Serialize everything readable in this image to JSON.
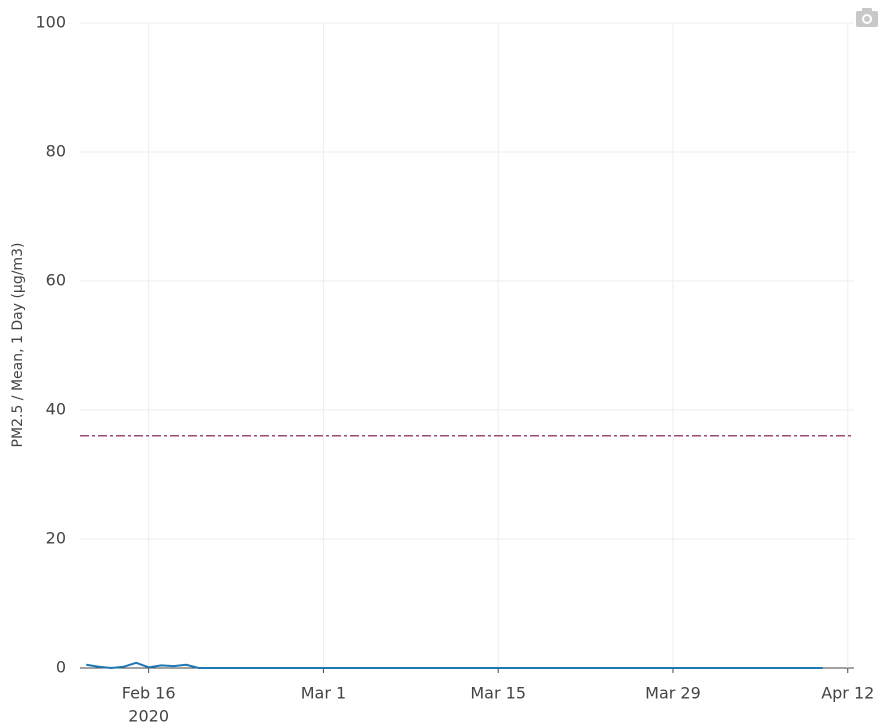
{
  "chart_data": {
    "type": "line",
    "y_axis_label": "PM2.5 / Mean, 1 Day (µg/m3)",
    "x": [
      "2020-02-11",
      "2020-02-12",
      "2020-02-13",
      "2020-02-14",
      "2020-02-15",
      "2020-02-16",
      "2020-02-17",
      "2020-02-18",
      "2020-02-19",
      "2020-02-20",
      "2020-02-21",
      "2020-02-22",
      "2020-02-23",
      "2020-02-24",
      "2020-02-25",
      "2020-02-26",
      "2020-02-27",
      "2020-02-28",
      "2020-02-29",
      "2020-03-01",
      "2020-03-02",
      "2020-03-03",
      "2020-03-04",
      "2020-03-05",
      "2020-03-06",
      "2020-03-07",
      "2020-03-08",
      "2020-03-09",
      "2020-03-10",
      "2020-03-11",
      "2020-03-12",
      "2020-03-13",
      "2020-03-14",
      "2020-03-15",
      "2020-03-16",
      "2020-03-17",
      "2020-03-18",
      "2020-03-19",
      "2020-03-20",
      "2020-03-21",
      "2020-03-22",
      "2020-03-23",
      "2020-03-24",
      "2020-03-25",
      "2020-03-26",
      "2020-03-27",
      "2020-03-28",
      "2020-03-29",
      "2020-03-30",
      "2020-03-31",
      "2020-04-01",
      "2020-04-02",
      "2020-04-03",
      "2020-04-04",
      "2020-04-05",
      "2020-04-06",
      "2020-04-07",
      "2020-04-08",
      "2020-04-09",
      "2020-04-10"
    ],
    "series": [
      {
        "color": "#1f77b4",
        "values": [
          0.5,
          0.2,
          0,
          0.2,
          0.8,
          0.1,
          0.4,
          0.3,
          0.5,
          0,
          0,
          0,
          0,
          0,
          0,
          0,
          0,
          0,
          0,
          0,
          0,
          0,
          0,
          0,
          0,
          0,
          0,
          0,
          0,
          0,
          0,
          0,
          0,
          0,
          0,
          0,
          0,
          0,
          0,
          0,
          0,
          0,
          0,
          0,
          0,
          0,
          0,
          0,
          0,
          0,
          0,
          0,
          0,
          0,
          0,
          0,
          0,
          0,
          0,
          0
        ]
      }
    ],
    "reference_lines": [
      {
        "value": 36,
        "color": "#9b4a72",
        "dash": "dash-dot"
      }
    ],
    "xlim": [
      "2020-02-10T12:00:00Z",
      "2020-04-12T12:00:00Z"
    ],
    "xticks": [
      {
        "value": "2020-02-16",
        "label": "Feb 16"
      },
      {
        "value": "2020-03-01",
        "label": "Mar 1"
      },
      {
        "value": "2020-03-15",
        "label": "Mar 15"
      },
      {
        "value": "2020-03-29",
        "label": "Mar 29"
      },
      {
        "value": "2020-04-12",
        "label": "Apr 12"
      }
    ],
    "x_year_label": "2020",
    "ylim": [
      0,
      100
    ],
    "yticks": [
      0,
      20,
      40,
      60,
      80,
      100
    ],
    "grid": true
  }
}
